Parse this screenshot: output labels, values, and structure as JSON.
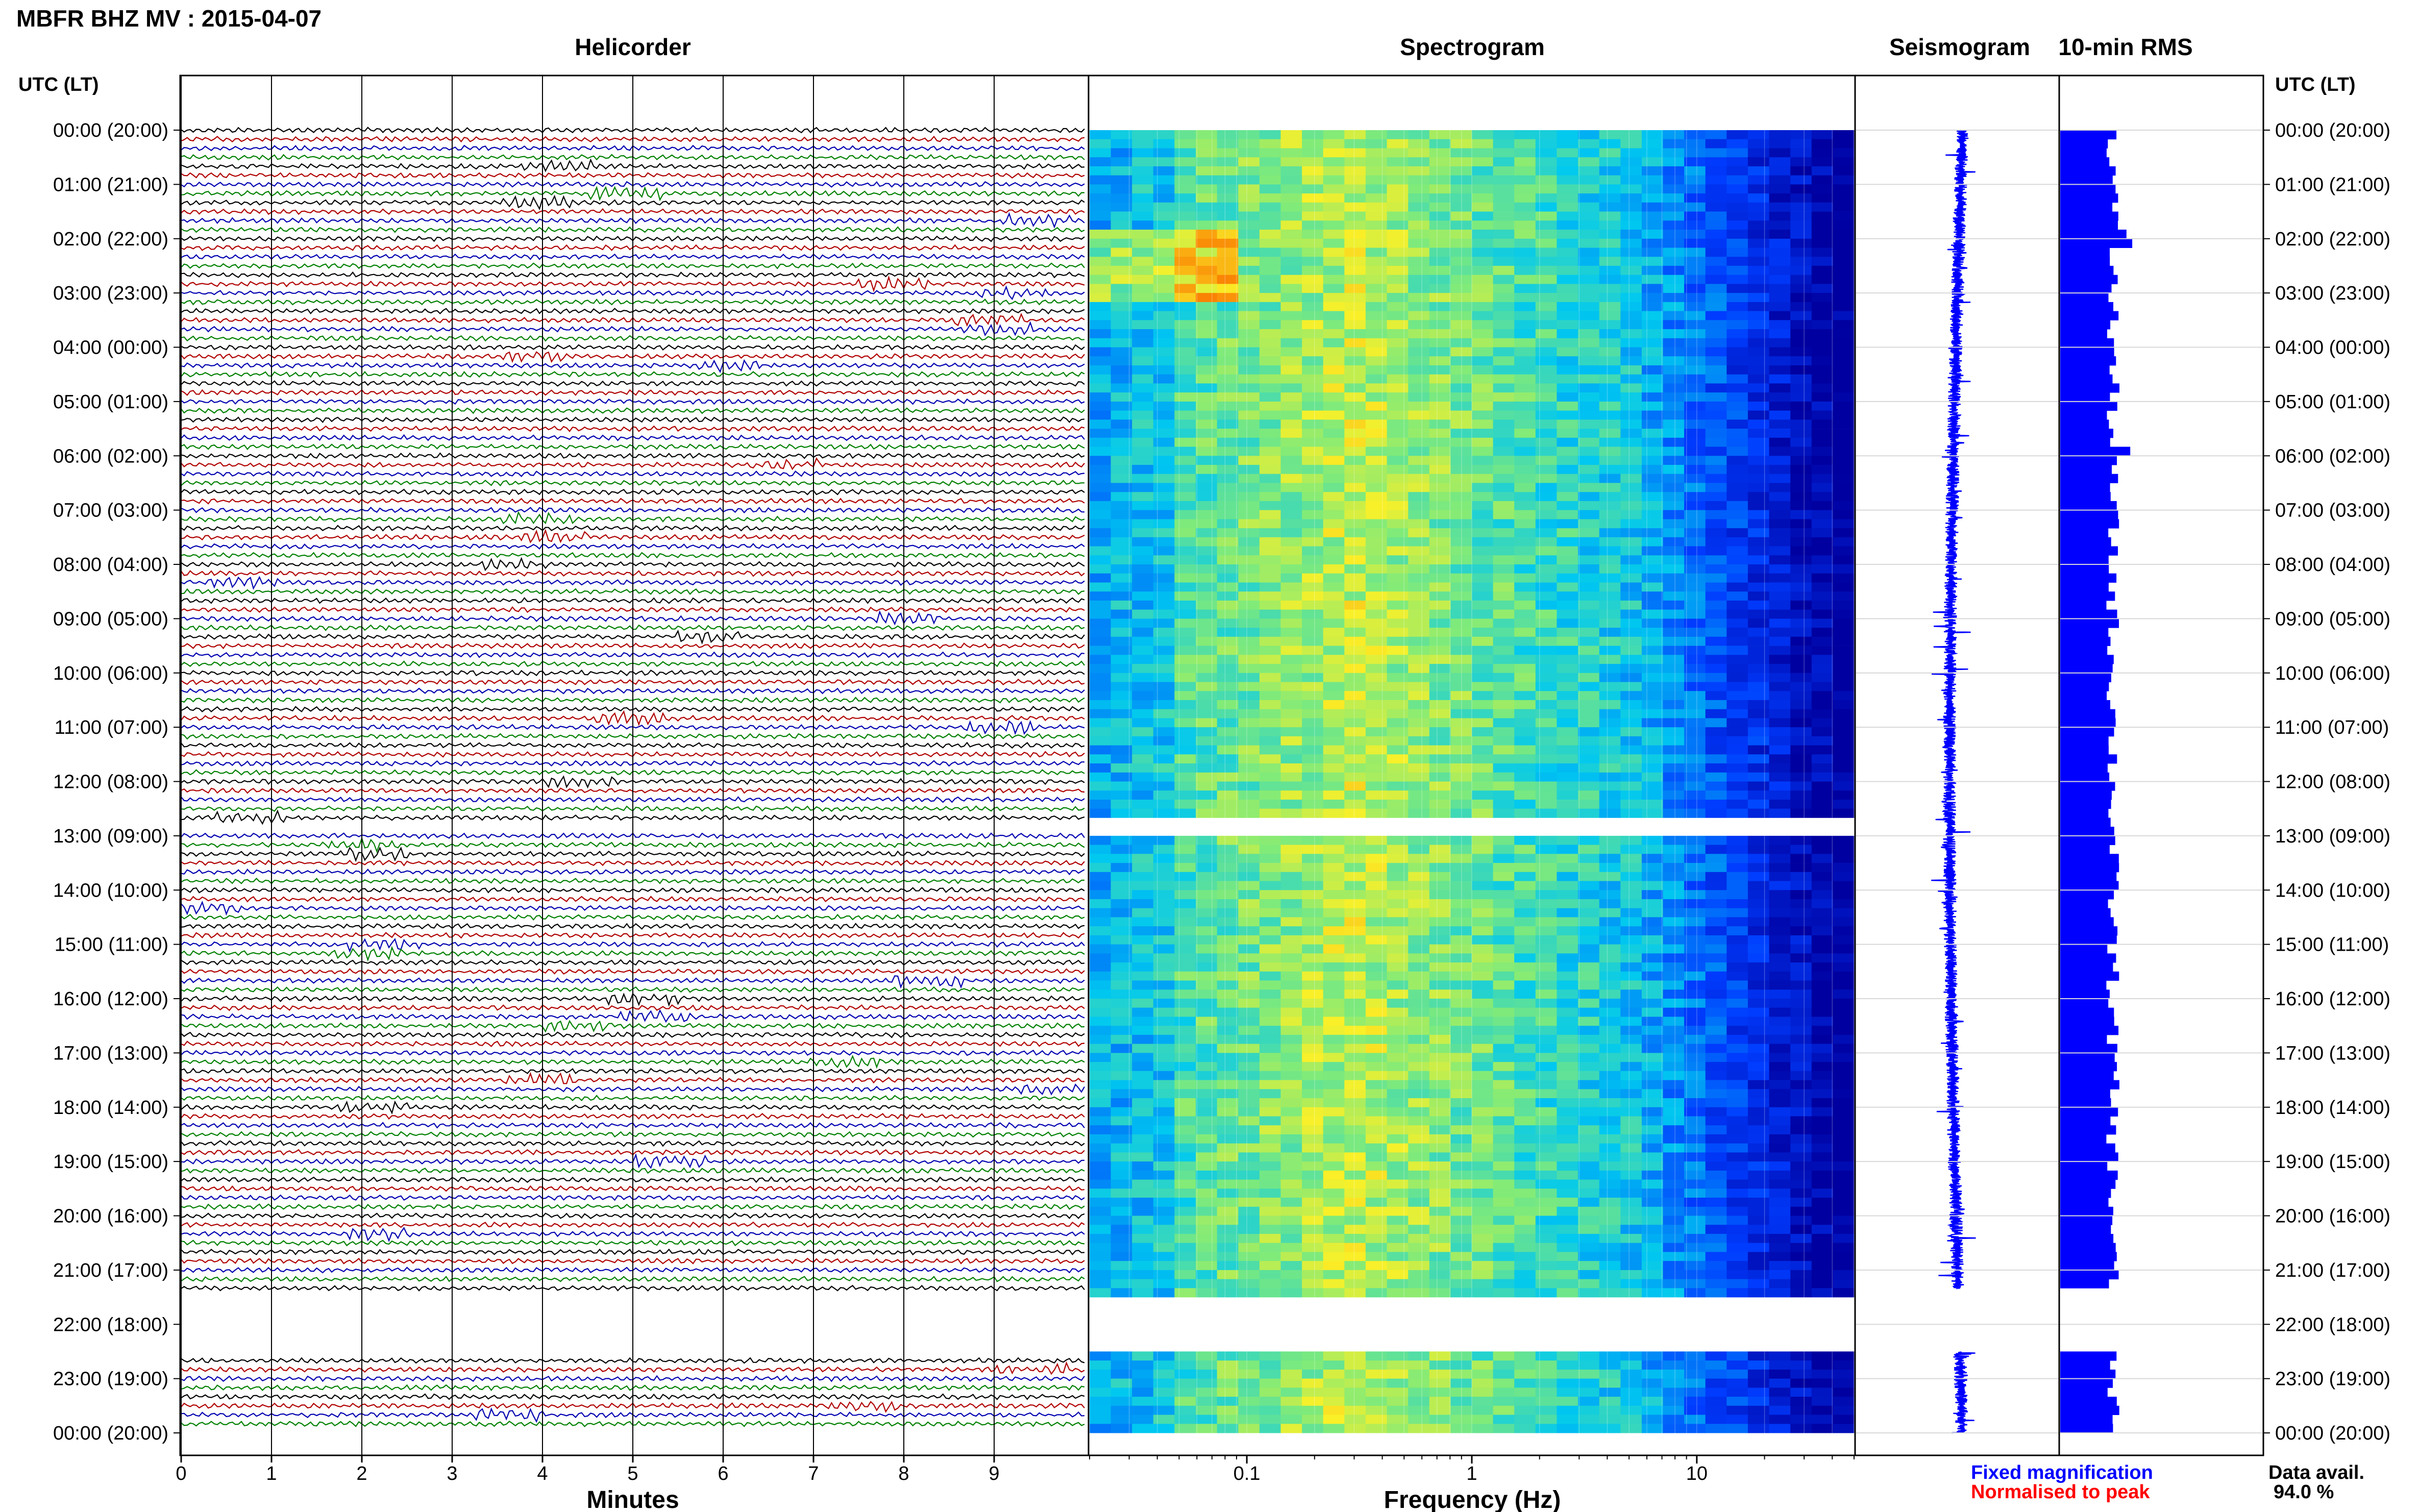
{
  "title": "MBFR BHZ MV : 2015-04-07",
  "panels": {
    "helicorder": "Helicorder",
    "spectrogram": "Spectrogram",
    "seismogram": "Seismogram",
    "rms": "10-min RMS"
  },
  "axis": {
    "time_header": "UTC (LT)",
    "minutes_label": "Minutes",
    "frequency_label": "Frequency (Hz)"
  },
  "legend": {
    "fixed": "Fixed magnification",
    "normalised": "Normalised to peak",
    "avail_label": "Data avail.",
    "avail_value": "94.0 %"
  },
  "colors": {
    "trace_cycle": [
      "#000000",
      "#b00000",
      "#0000b0",
      "#008000"
    ],
    "seismogram": "#0000ff",
    "rms": "#0000ff",
    "fixed_legend": "#0000ff",
    "normalised_legend": "#ff0000"
  },
  "chart_data": [
    {
      "type": "line",
      "panel": "helicorder",
      "x_ticks": [
        0,
        1,
        2,
        3,
        4,
        5,
        6,
        7,
        8,
        9
      ],
      "xlim": [
        0,
        10
      ],
      "time_labels": [
        "00:00 (20:00)",
        "01:00 (21:00)",
        "02:00 (22:00)",
        "03:00 (23:00)",
        "04:00 (00:00)",
        "05:00 (01:00)",
        "06:00 (02:00)",
        "07:00 (03:00)",
        "08:00 (04:00)",
        "09:00 (05:00)",
        "10:00 (06:00)",
        "11:00 (07:00)",
        "12:00 (08:00)",
        "13:00 (09:00)",
        "14:00 (10:00)",
        "15:00 (11:00)",
        "16:00 (12:00)",
        "17:00 (13:00)",
        "18:00 (14:00)",
        "19:00 (15:00)",
        "20:00 (16:00)",
        "21:00 (17:00)",
        "22:00 (18:00)",
        "23:00 (19:00)",
        "00:00 (20:00)"
      ],
      "row_minutes": 10,
      "data_gaps_hours": [
        [
          12.7,
          12.95
        ],
        [
          21.35,
          22.55
        ]
      ]
    },
    {
      "type": "heatmap",
      "panel": "spectrogram",
      "x_scale": "log",
      "xlim": [
        0.02,
        50
      ],
      "x_tick_labels": [
        "0.1",
        "1",
        "10"
      ],
      "gap_hours": [
        [
          12.65,
          12.95
        ],
        [
          21.4,
          22.5
        ]
      ]
    },
    {
      "type": "line",
      "panel": "seismogram",
      "gap_hours": [
        [
          21.35,
          22.5
        ]
      ]
    },
    {
      "type": "bar",
      "panel": "rms",
      "orientation": "horizontal",
      "interval_minutes": 10,
      "gap_hours": [
        [
          21.35,
          22.5
        ]
      ]
    }
  ]
}
